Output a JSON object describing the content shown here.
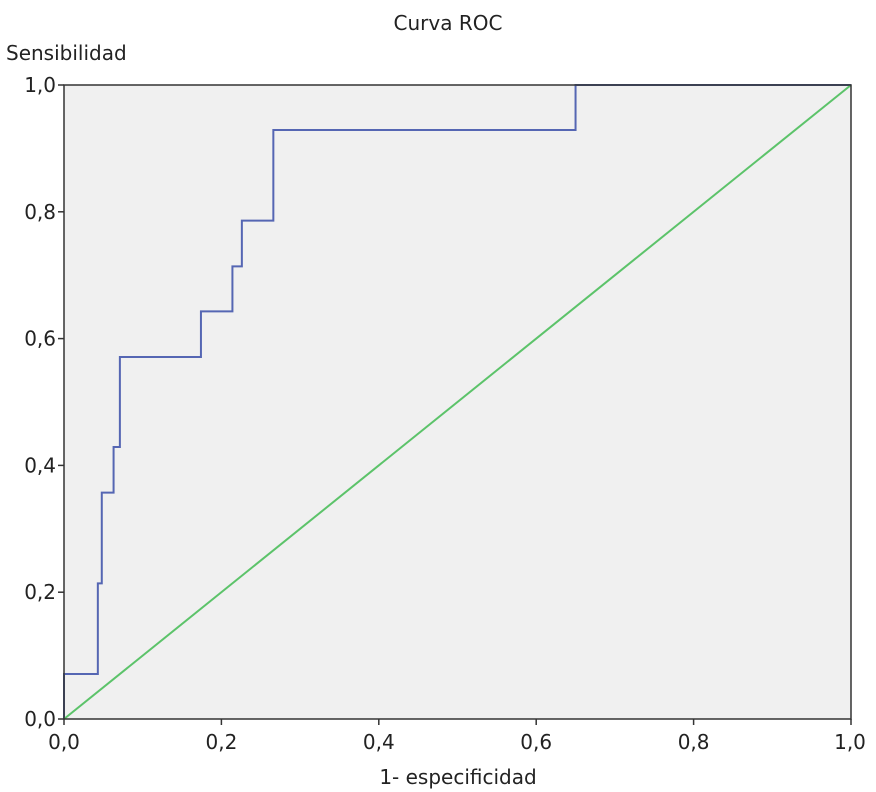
{
  "chart_data": {
    "type": "line",
    "title": "Curva ROC",
    "xlabel": "1- especificidad",
    "ylabel": "Sensibilidad",
    "xlim": [
      0,
      1
    ],
    "ylim": [
      0,
      1
    ],
    "x_ticks": [
      "0,0",
      "0,2",
      "0,4",
      "0,6",
      "0,8",
      "1,0"
    ],
    "y_ticks": [
      "0,0",
      "0,2",
      "0,4",
      "0,6",
      "0,8",
      "1,0"
    ],
    "grid": false,
    "legend": "none",
    "colors": {
      "plot_background": "#f0f0f0",
      "roc_line": "#5566b3",
      "reference_line": "#5cc36a",
      "frame": "#333333"
    },
    "series": [
      {
        "line_style": "step",
        "x": [
          0,
          0,
          0.043,
          0.043,
          0.048,
          0.048,
          0.063,
          0.063,
          0.071,
          0.071,
          0.174,
          0.174,
          0.214,
          0.214,
          0.226,
          0.226,
          0.266,
          0.266,
          0.65,
          0.65,
          1
        ],
        "y": [
          0,
          0.071,
          0.071,
          0.214,
          0.214,
          0.357,
          0.357,
          0.429,
          0.429,
          0.571,
          0.571,
          0.643,
          0.643,
          0.714,
          0.714,
          0.786,
          0.786,
          0.929,
          0.929,
          1,
          1
        ]
      },
      {
        "line_style": "straight",
        "x": [
          0,
          1
        ],
        "y": [
          0,
          1
        ]
      }
    ]
  }
}
